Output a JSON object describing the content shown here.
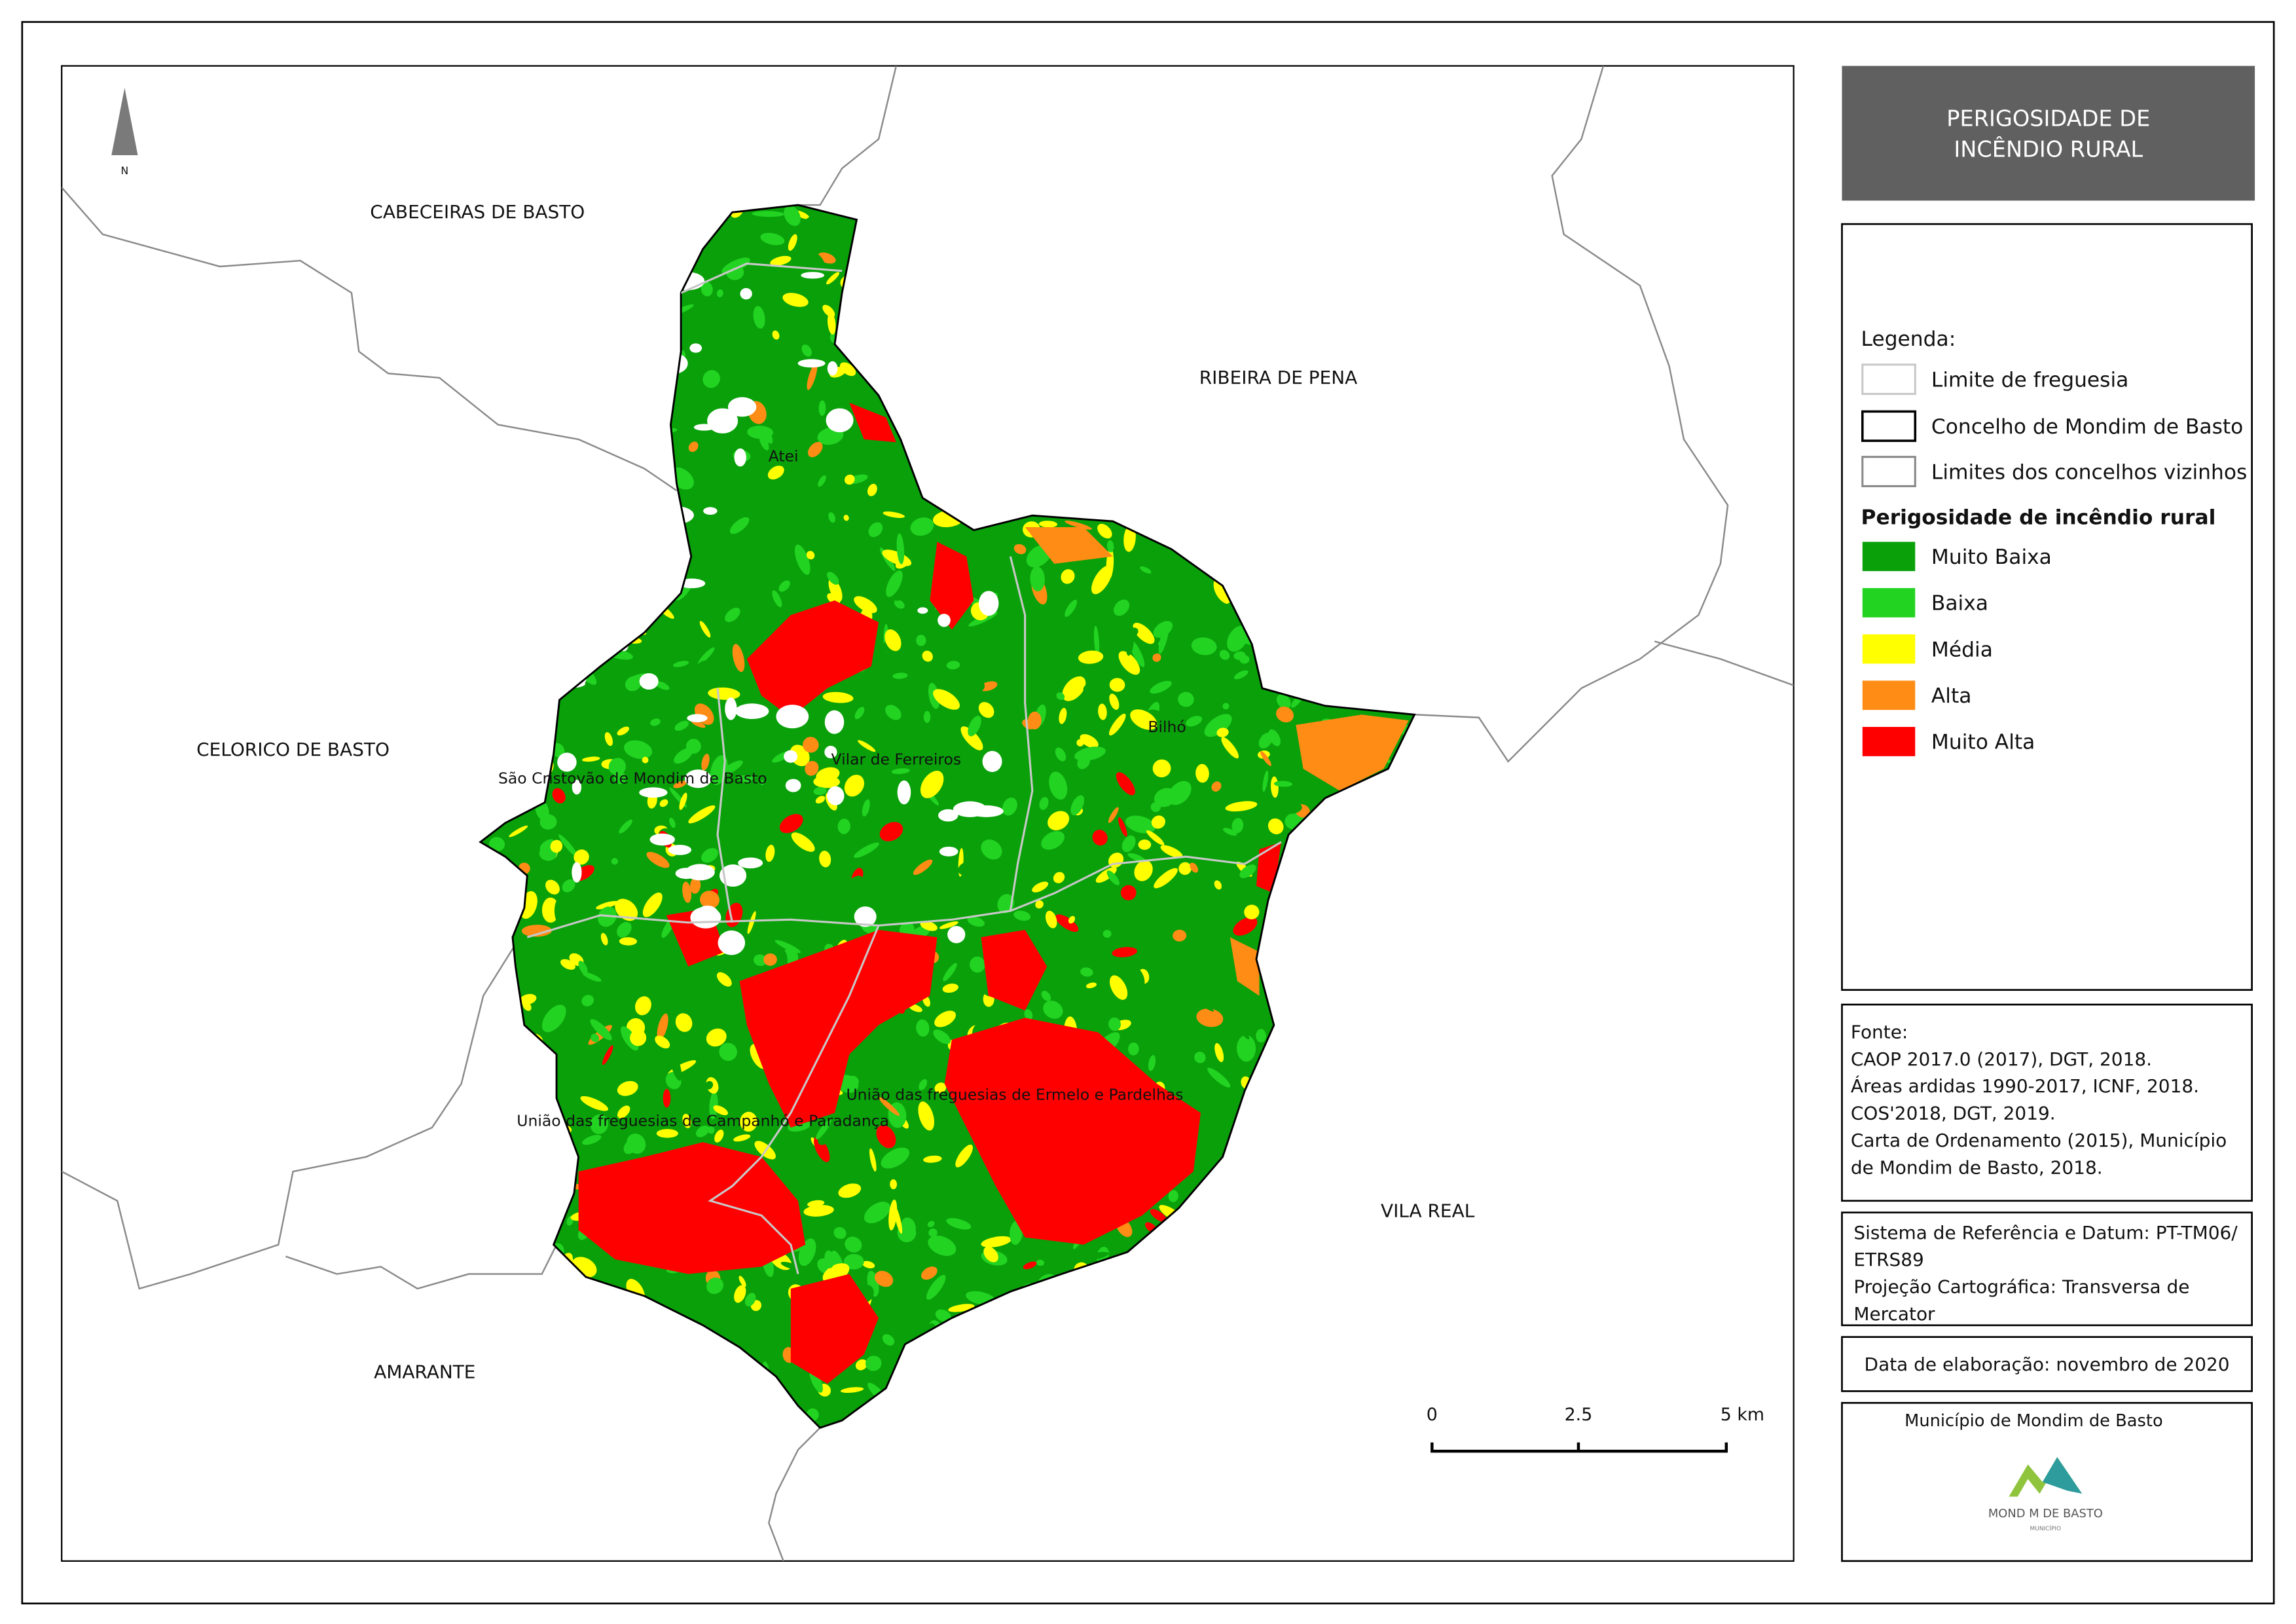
{
  "title": [
    "PERIGOSIDADE DE",
    "INCÊNDIO RURAL"
  ],
  "north_arrow": "N",
  "neighbors": [
    "CABECEIRAS DE BASTO",
    "RIBEIRA DE PENA",
    "CELORICO DE BASTO",
    "VILA REAL",
    "AMARANTE"
  ],
  "parishes": [
    "Atei",
    "Bilhó",
    "Vilar de Ferreiros",
    "São Cristovão de Mondim de Basto",
    "União das freguesias de Ermelo e Pardelhas",
    "União das freguesias de Campanhó e Paradança"
  ],
  "legend": {
    "heading": "Legenda:",
    "boundaries": [
      "Limite de freguesia",
      "Concelho de Mondim de Basto",
      "Limites dos concelhos vizinhos"
    ],
    "hazard_heading": "Perigosidade de incêndio rural",
    "classes": [
      {
        "label": "Muito Baixa",
        "color": "#0aa00a"
      },
      {
        "label": "Baixa",
        "color": "#22d322"
      },
      {
        "label": "Média",
        "color": "#ffff00"
      },
      {
        "label": "Alta",
        "color": "#ff8c14"
      },
      {
        "label": "Muito Alta",
        "color": "#ff0000"
      }
    ]
  },
  "sources": [
    "Fonte:",
    "CAOP 2017.0 (2017), DGT, 2018.",
    "Áreas ardidas 1990-2017, ICNF, 2018.",
    "COS'2018, DGT, 2019.",
    "Carta de Ordenamento (2015), Município",
    "de Mondim de Basto, 2018."
  ],
  "reference": [
    "Sistema de Referência e Datum: PT-TM06/",
    "ETRS89",
    "Projeção Cartográfica: Transversa de",
    "Mercator"
  ],
  "date": "Data de elaboração: novembro de 2020",
  "scale_bar": [
    "0",
    "2.5",
    "5 km"
  ],
  "footer": {
    "organization": "Município de Mondim de Basto",
    "logo_text": "MOND M DE BASTO",
    "logo_subtext": "MUNICÍPIO"
  }
}
